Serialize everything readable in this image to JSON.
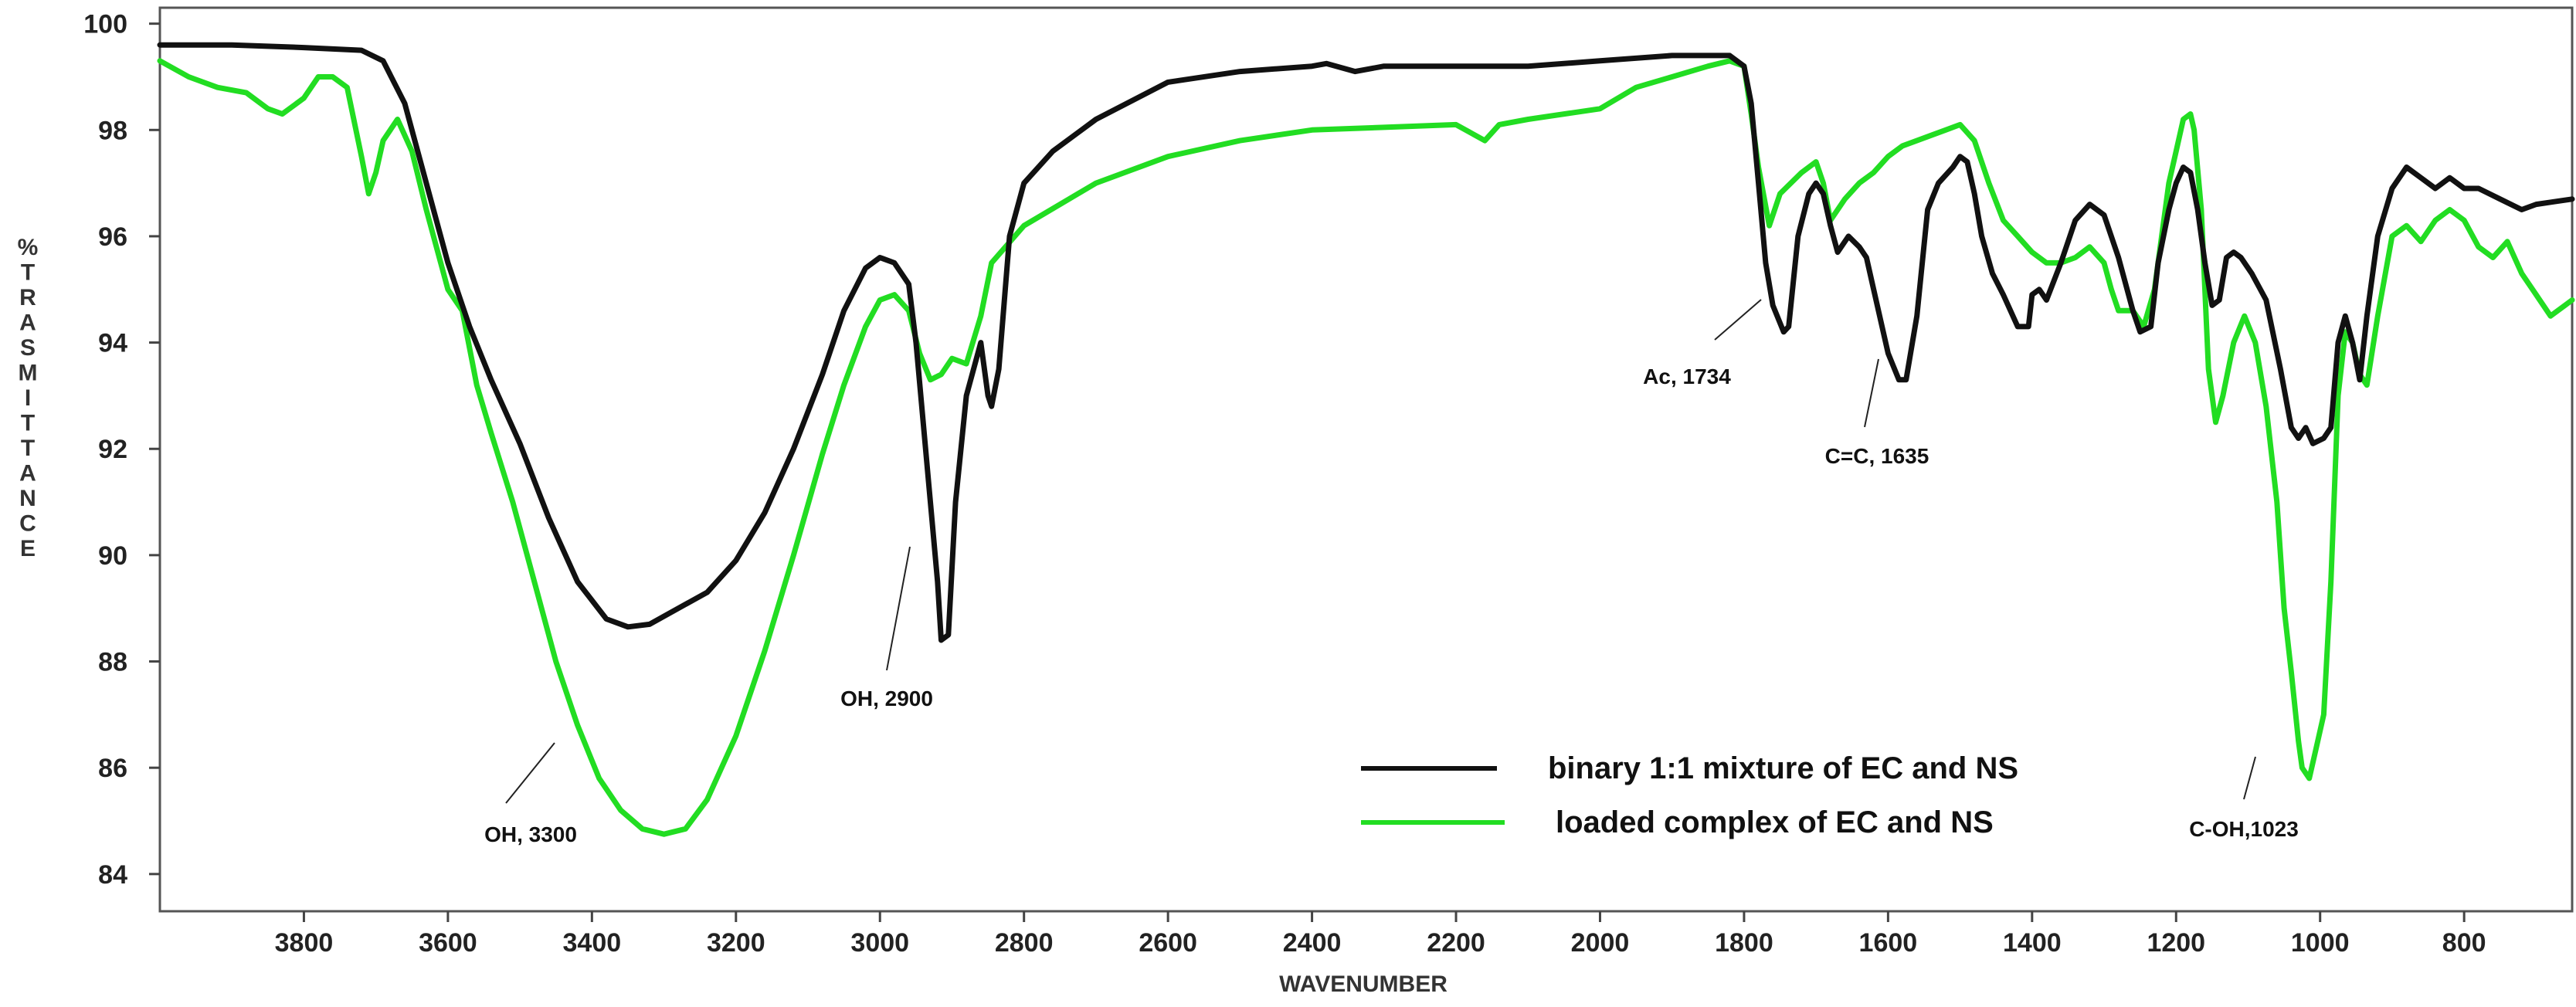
{
  "chart_data": {
    "type": "line",
    "xlabel": "WAVENUMBER",
    "ylabel": "%TRASMITTANCE",
    "xlim": [
      4000,
      650
    ],
    "ylim": [
      83.3,
      100.3
    ],
    "x_reversed": true,
    "x_ticks": [
      "3800",
      "3600",
      "3400",
      "3200",
      "3000",
      "2800",
      "2600",
      "2400",
      "2200",
      "2000",
      "1800",
      "1600",
      "1400",
      "1200",
      "1000",
      "800"
    ],
    "y_ticks": [
      "100",
      "98",
      "96",
      "94",
      "92",
      "90",
      "88",
      "86",
      "84"
    ],
    "grid": false,
    "legend_position": "bottom-center",
    "colors": {
      "binary": "#111111",
      "loaded": "#22dd22"
    },
    "series": [
      {
        "name": "binary 1:1 mixture  of EC and NS",
        "points": [
          [
            4000,
            99.6
          ],
          [
            3900,
            99.6
          ],
          [
            3800,
            99.55
          ],
          [
            3720,
            99.5
          ],
          [
            3690,
            99.3
          ],
          [
            3660,
            98.5
          ],
          [
            3630,
            97.0
          ],
          [
            3600,
            95.5
          ],
          [
            3570,
            94.3
          ],
          [
            3540,
            93.3
          ],
          [
            3500,
            92.1
          ],
          [
            3460,
            90.7
          ],
          [
            3420,
            89.5
          ],
          [
            3380,
            88.8
          ],
          [
            3350,
            88.65
          ],
          [
            3320,
            88.7
          ],
          [
            3280,
            89.0
          ],
          [
            3240,
            89.3
          ],
          [
            3200,
            89.9
          ],
          [
            3160,
            90.8
          ],
          [
            3120,
            92.0
          ],
          [
            3080,
            93.4
          ],
          [
            3050,
            94.6
          ],
          [
            3020,
            95.4
          ],
          [
            3000,
            95.6
          ],
          [
            2980,
            95.5
          ],
          [
            2960,
            95.1
          ],
          [
            2950,
            94.0
          ],
          [
            2940,
            92.5
          ],
          [
            2930,
            91.0
          ],
          [
            2920,
            89.5
          ],
          [
            2915,
            88.4
          ],
          [
            2905,
            88.5
          ],
          [
            2895,
            91.0
          ],
          [
            2880,
            93.0
          ],
          [
            2860,
            94.0
          ],
          [
            2850,
            93.0
          ],
          [
            2845,
            92.8
          ],
          [
            2835,
            93.5
          ],
          [
            2820,
            96.0
          ],
          [
            2800,
            97.0
          ],
          [
            2760,
            97.6
          ],
          [
            2700,
            98.2
          ],
          [
            2600,
            98.9
          ],
          [
            2500,
            99.1
          ],
          [
            2400,
            99.2
          ],
          [
            2380,
            99.25
          ],
          [
            2340,
            99.1
          ],
          [
            2300,
            99.2
          ],
          [
            2200,
            99.2
          ],
          [
            2100,
            99.2
          ],
          [
            2000,
            99.3
          ],
          [
            1900,
            99.4
          ],
          [
            1820,
            99.4
          ],
          [
            1800,
            99.2
          ],
          [
            1790,
            98.5
          ],
          [
            1780,
            97.0
          ],
          [
            1770,
            95.5
          ],
          [
            1760,
            94.7
          ],
          [
            1745,
            94.2
          ],
          [
            1738,
            94.3
          ],
          [
            1725,
            96.0
          ],
          [
            1710,
            96.8
          ],
          [
            1700,
            97.0
          ],
          [
            1690,
            96.8
          ],
          [
            1680,
            96.2
          ],
          [
            1670,
            95.7
          ],
          [
            1655,
            96.0
          ],
          [
            1640,
            95.8
          ],
          [
            1630,
            95.6
          ],
          [
            1620,
            95.0
          ],
          [
            1600,
            93.8
          ],
          [
            1585,
            93.3
          ],
          [
            1575,
            93.3
          ],
          [
            1560,
            94.5
          ],
          [
            1545,
            96.5
          ],
          [
            1530,
            97.0
          ],
          [
            1510,
            97.3
          ],
          [
            1500,
            97.5
          ],
          [
            1490,
            97.4
          ],
          [
            1480,
            96.8
          ],
          [
            1470,
            96.0
          ],
          [
            1455,
            95.3
          ],
          [
            1440,
            94.9
          ],
          [
            1420,
            94.3
          ],
          [
            1405,
            94.3
          ],
          [
            1400,
            94.9
          ],
          [
            1390,
            95.0
          ],
          [
            1380,
            94.8
          ],
          [
            1360,
            95.5
          ],
          [
            1340,
            96.3
          ],
          [
            1320,
            96.6
          ],
          [
            1300,
            96.4
          ],
          [
            1280,
            95.6
          ],
          [
            1260,
            94.6
          ],
          [
            1250,
            94.2
          ],
          [
            1235,
            94.3
          ],
          [
            1225,
            95.5
          ],
          [
            1210,
            96.5
          ],
          [
            1200,
            97.0
          ],
          [
            1190,
            97.3
          ],
          [
            1180,
            97.2
          ],
          [
            1170,
            96.5
          ],
          [
            1160,
            95.5
          ],
          [
            1150,
            94.7
          ],
          [
            1140,
            94.8
          ],
          [
            1130,
            95.6
          ],
          [
            1120,
            95.7
          ],
          [
            1110,
            95.6
          ],
          [
            1095,
            95.3
          ],
          [
            1075,
            94.8
          ],
          [
            1055,
            93.5
          ],
          [
            1040,
            92.4
          ],
          [
            1030,
            92.2
          ],
          [
            1020,
            92.4
          ],
          [
            1010,
            92.1
          ],
          [
            995,
            92.2
          ],
          [
            985,
            92.4
          ],
          [
            975,
            94.0
          ],
          [
            965,
            94.5
          ],
          [
            955,
            94.0
          ],
          [
            945,
            93.3
          ],
          [
            935,
            94.5
          ],
          [
            920,
            96.0
          ],
          [
            900,
            96.9
          ],
          [
            880,
            97.3
          ],
          [
            860,
            97.1
          ],
          [
            840,
            96.9
          ],
          [
            820,
            97.1
          ],
          [
            800,
            96.9
          ],
          [
            780,
            96.9
          ],
          [
            750,
            96.7
          ],
          [
            720,
            96.5
          ],
          [
            700,
            96.6
          ],
          [
            650,
            96.7
          ]
        ]
      },
      {
        "name": "loaded complex of EC and NS",
        "points": [
          [
            4000,
            99.3
          ],
          [
            3960,
            99.0
          ],
          [
            3920,
            98.8
          ],
          [
            3880,
            98.7
          ],
          [
            3850,
            98.4
          ],
          [
            3830,
            98.3
          ],
          [
            3800,
            98.6
          ],
          [
            3780,
            99.0
          ],
          [
            3760,
            99.0
          ],
          [
            3740,
            98.8
          ],
          [
            3720,
            97.5
          ],
          [
            3710,
            96.8
          ],
          [
            3700,
            97.2
          ],
          [
            3690,
            97.8
          ],
          [
            3670,
            98.2
          ],
          [
            3650,
            97.6
          ],
          [
            3630,
            96.5
          ],
          [
            3610,
            95.5
          ],
          [
            3600,
            95.0
          ],
          [
            3580,
            94.6
          ],
          [
            3560,
            93.2
          ],
          [
            3540,
            92.3
          ],
          [
            3510,
            91.0
          ],
          [
            3480,
            89.5
          ],
          [
            3450,
            88.0
          ],
          [
            3420,
            86.8
          ],
          [
            3390,
            85.8
          ],
          [
            3360,
            85.2
          ],
          [
            3330,
            84.85
          ],
          [
            3300,
            84.75
          ],
          [
            3270,
            84.85
          ],
          [
            3240,
            85.4
          ],
          [
            3200,
            86.6
          ],
          [
            3160,
            88.2
          ],
          [
            3120,
            90.0
          ],
          [
            3080,
            91.9
          ],
          [
            3050,
            93.2
          ],
          [
            3020,
            94.3
          ],
          [
            3000,
            94.8
          ],
          [
            2980,
            94.9
          ],
          [
            2960,
            94.6
          ],
          [
            2945,
            93.8
          ],
          [
            2930,
            93.3
          ],
          [
            2915,
            93.4
          ],
          [
            2900,
            93.7
          ],
          [
            2880,
            93.6
          ],
          [
            2860,
            94.5
          ],
          [
            2845,
            95.5
          ],
          [
            2800,
            96.2
          ],
          [
            2700,
            97.0
          ],
          [
            2600,
            97.5
          ],
          [
            2500,
            97.8
          ],
          [
            2400,
            98.0
          ],
          [
            2300,
            98.05
          ],
          [
            2200,
            98.1
          ],
          [
            2160,
            97.8
          ],
          [
            2140,
            98.1
          ],
          [
            2100,
            98.2
          ],
          [
            2000,
            98.4
          ],
          [
            1950,
            98.8
          ],
          [
            1900,
            99.0
          ],
          [
            1850,
            99.2
          ],
          [
            1820,
            99.3
          ],
          [
            1800,
            99.2
          ],
          [
            1790,
            98.3
          ],
          [
            1780,
            97.3
          ],
          [
            1765,
            96.2
          ],
          [
            1750,
            96.8
          ],
          [
            1720,
            97.2
          ],
          [
            1700,
            97.4
          ],
          [
            1690,
            97.0
          ],
          [
            1680,
            96.3
          ],
          [
            1660,
            96.7
          ],
          [
            1640,
            97.0
          ],
          [
            1620,
            97.2
          ],
          [
            1600,
            97.5
          ],
          [
            1580,
            97.7
          ],
          [
            1560,
            97.8
          ],
          [
            1540,
            97.9
          ],
          [
            1520,
            98.0
          ],
          [
            1500,
            98.1
          ],
          [
            1480,
            97.8
          ],
          [
            1460,
            97.0
          ],
          [
            1440,
            96.3
          ],
          [
            1420,
            96.0
          ],
          [
            1400,
            95.7
          ],
          [
            1380,
            95.5
          ],
          [
            1360,
            95.5
          ],
          [
            1340,
            95.6
          ],
          [
            1320,
            95.8
          ],
          [
            1300,
            95.5
          ],
          [
            1290,
            95.0
          ],
          [
            1280,
            94.6
          ],
          [
            1260,
            94.6
          ],
          [
            1245,
            94.3
          ],
          [
            1230,
            95.0
          ],
          [
            1220,
            96.0
          ],
          [
            1210,
            97.0
          ],
          [
            1200,
            97.6
          ],
          [
            1190,
            98.2
          ],
          [
            1180,
            98.3
          ],
          [
            1175,
            98.0
          ],
          [
            1165,
            96.5
          ],
          [
            1155,
            93.5
          ],
          [
            1145,
            92.5
          ],
          [
            1135,
            93.0
          ],
          [
            1120,
            94.0
          ],
          [
            1105,
            94.5
          ],
          [
            1090,
            94.0
          ],
          [
            1075,
            92.8
          ],
          [
            1060,
            91.0
          ],
          [
            1050,
            89.0
          ],
          [
            1040,
            87.8
          ],
          [
            1030,
            86.5
          ],
          [
            1025,
            86.0
          ],
          [
            1015,
            85.8
          ],
          [
            1005,
            86.4
          ],
          [
            995,
            87.0
          ],
          [
            985,
            89.5
          ],
          [
            975,
            93.0
          ],
          [
            965,
            94.2
          ],
          [
            955,
            94.0
          ],
          [
            945,
            93.4
          ],
          [
            935,
            93.2
          ],
          [
            920,
            94.5
          ],
          [
            900,
            96.0
          ],
          [
            880,
            96.2
          ],
          [
            860,
            95.9
          ],
          [
            840,
            96.3
          ],
          [
            820,
            96.5
          ],
          [
            800,
            96.3
          ],
          [
            780,
            95.8
          ],
          [
            760,
            95.6
          ],
          [
            740,
            95.9
          ],
          [
            720,
            95.3
          ],
          [
            700,
            94.9
          ],
          [
            680,
            94.5
          ],
          [
            660,
            94.7
          ],
          [
            650,
            94.8
          ]
        ]
      }
    ],
    "annotations": [
      {
        "label": "OH, 3300",
        "x": 3300
      },
      {
        "label": "OH, 2900",
        "x": 2900
      },
      {
        "label": "Ac, 1734",
        "x": 1734
      },
      {
        "label": "C=C, 1635",
        "x": 1635
      },
      {
        "label": "C-OH,1023",
        "x": 1023
      }
    ]
  }
}
